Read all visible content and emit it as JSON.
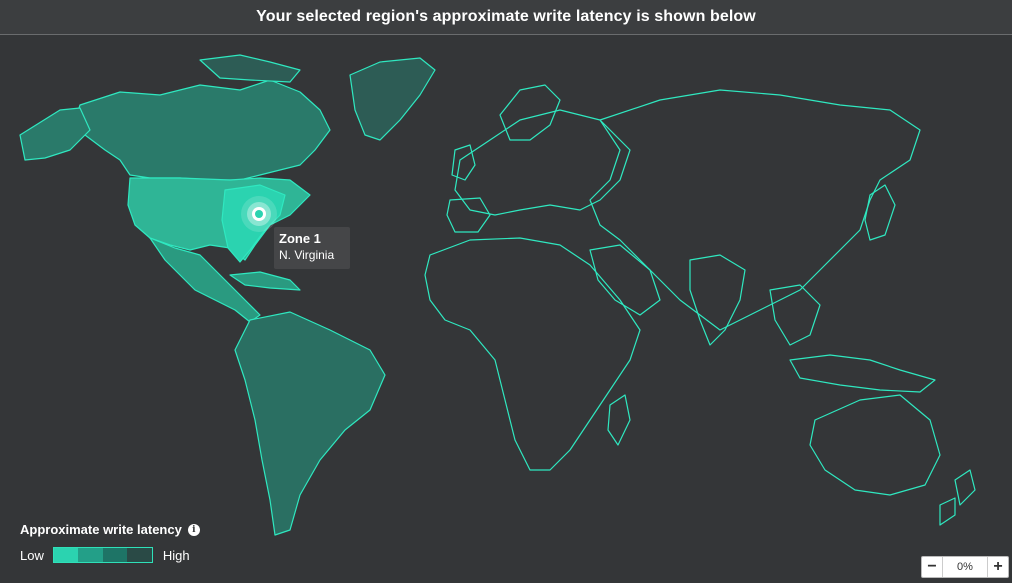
{
  "header": {
    "title": "Your selected region's approximate write latency is shown below"
  },
  "tooltip": {
    "zone": "Zone 1",
    "region": "N. Virginia"
  },
  "legend": {
    "title": "Approximate write latency",
    "low_label": "Low",
    "high_label": "High",
    "swatches": [
      "#2bd3b0",
      "#239f88",
      "#1e7466",
      "#2a4a46"
    ]
  },
  "zoom": {
    "value": "0%",
    "minus": "−",
    "plus": "+"
  },
  "colors": {
    "background": "#343638",
    "land_outline": "#2fe8c0",
    "low_fill": "#2bd3b0",
    "mid_fill": "#258f7c",
    "high_fill": "#2d5c55"
  },
  "icons": {
    "info": "info-icon",
    "marker": "location-marker-icon"
  }
}
